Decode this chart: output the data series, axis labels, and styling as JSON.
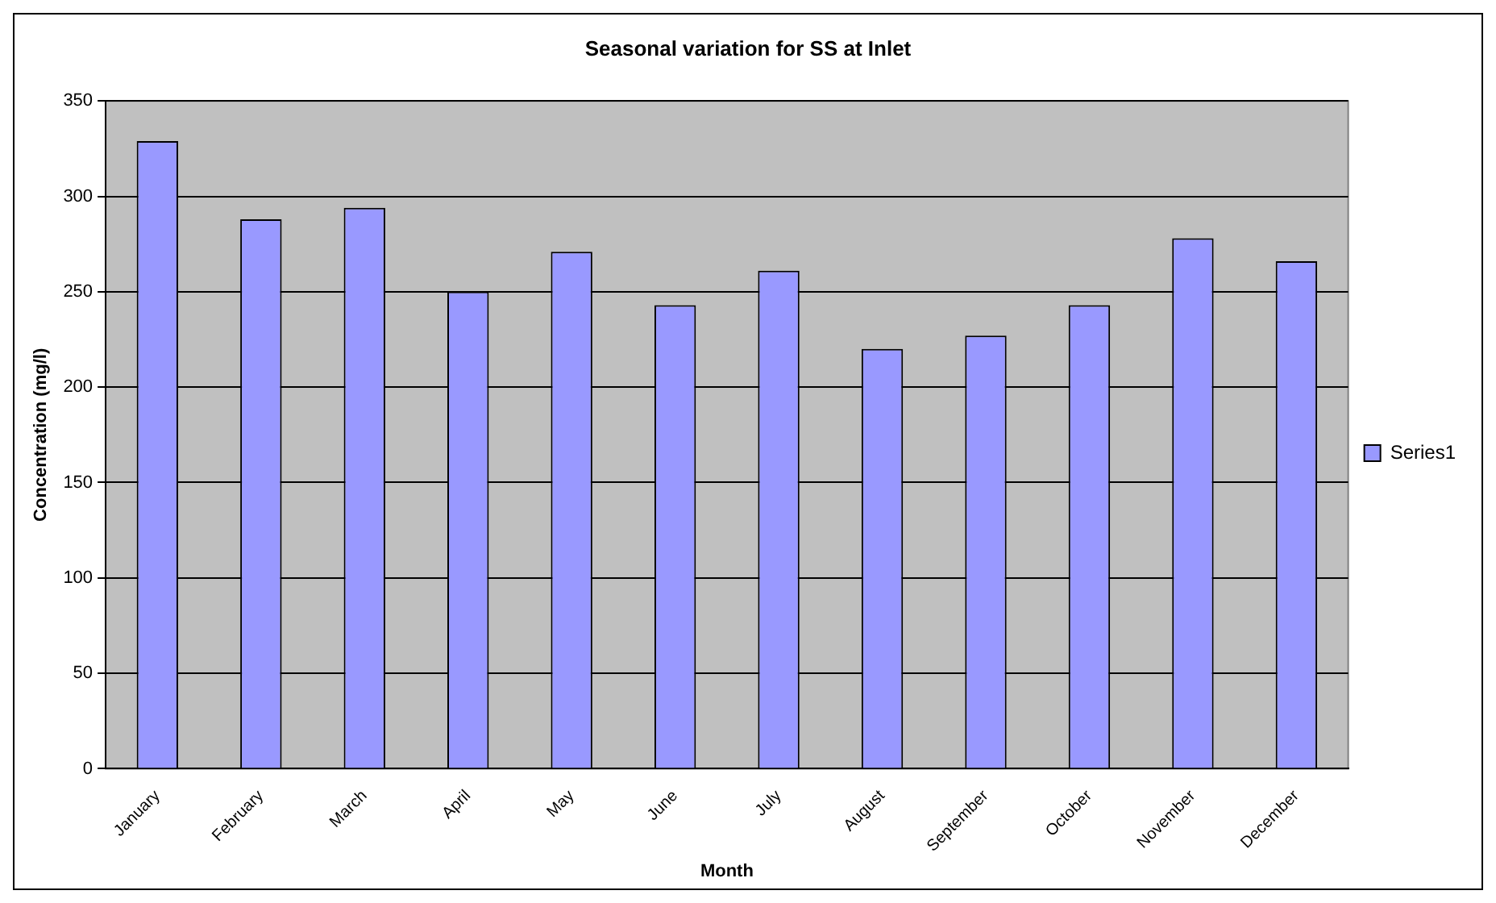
{
  "chart_data": {
    "type": "bar",
    "title": "Seasonal variation for SS at Inlet",
    "xlabel": "Month",
    "ylabel": "Concentration (mg/l)",
    "categories": [
      "January",
      "February",
      "March",
      "April",
      "May",
      "June",
      "July",
      "August",
      "September",
      "October",
      "November",
      "December"
    ],
    "series": [
      {
        "name": "Series1",
        "color": "#9999ff",
        "values": [
          329,
          288,
          294,
          250,
          271,
          243,
          261,
          220,
          227,
          243,
          278,
          266
        ]
      }
    ],
    "ylim": [
      0,
      350
    ],
    "yticks": [
      0,
      50,
      100,
      150,
      200,
      250,
      300,
      350
    ],
    "grid": "y",
    "legend": "right"
  }
}
